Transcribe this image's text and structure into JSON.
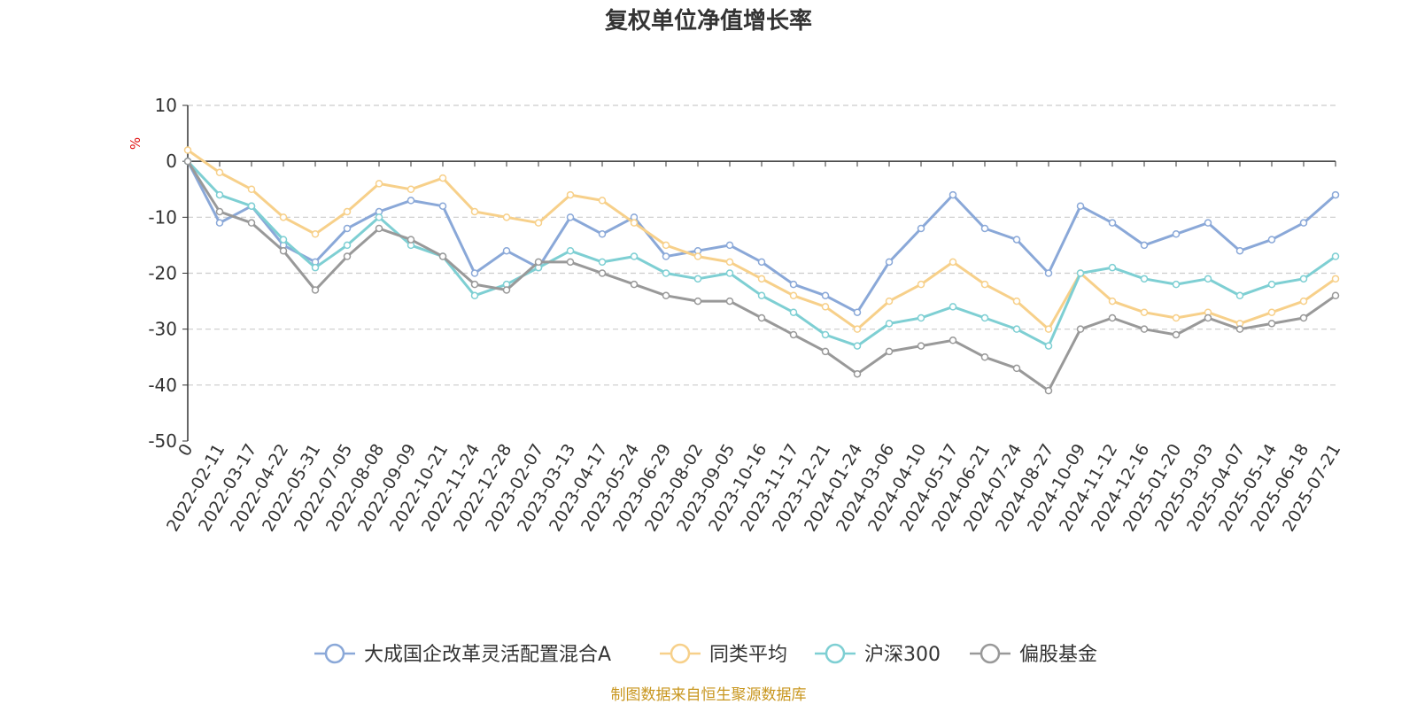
{
  "chart_data": {
    "type": "line",
    "title": "复权单位净值增长率",
    "ylabel": "%",
    "xlabel": "",
    "ylim": [
      -50,
      10
    ],
    "yticks": [
      10,
      0,
      -10,
      -20,
      -30,
      -40,
      -50
    ],
    "grid": true,
    "legend_position": "bottom",
    "x": [
      "0",
      "2022-02-11",
      "2022-03-17",
      "2022-04-22",
      "2022-05-31",
      "2022-07-05",
      "2022-08-08",
      "2022-09-09",
      "2022-10-21",
      "2022-11-24",
      "2022-12-28",
      "2023-02-07",
      "2023-03-13",
      "2023-04-17",
      "2023-05-24",
      "2023-06-29",
      "2023-08-02",
      "2023-09-05",
      "2023-10-16",
      "2023-11-17",
      "2023-12-21",
      "2024-01-24",
      "2024-03-06",
      "2024-04-10",
      "2024-05-17",
      "2024-06-21",
      "2024-07-24",
      "2024-08-27",
      "2024-10-09",
      "2024-11-12",
      "2024-12-16",
      "2025-01-20",
      "2025-03-03",
      "2025-04-07",
      "2025-05-14",
      "2025-06-18",
      "2025-07-21"
    ],
    "series": [
      {
        "name": "大成国企改革灵活配置混合A",
        "color": "#8aa8d8",
        "values": [
          0,
          -11,
          -8,
          -15,
          -18,
          -12,
          -9,
          -7,
          -8,
          -20,
          -16,
          -19,
          -10,
          -13,
          -10,
          -17,
          -16,
          -15,
          -18,
          -22,
          -24,
          -27,
          -18,
          -12,
          -6,
          -12,
          -14,
          -20,
          -8,
          -11,
          -15,
          -13,
          -11,
          -16,
          -14,
          -11,
          -6
        ]
      },
      {
        "name": "同类平均",
        "color": "#f7d08a",
        "values": [
          2,
          -2,
          -5,
          -10,
          -13,
          -9,
          -4,
          -5,
          -3,
          -9,
          -10,
          -11,
          -6,
          -7,
          -11,
          -15,
          -17,
          -18,
          -21,
          -24,
          -26,
          -30,
          -25,
          -22,
          -18,
          -22,
          -25,
          -30,
          -20,
          -25,
          -27,
          -28,
          -27,
          -29,
          -27,
          -25,
          -21
        ]
      },
      {
        "name": "沪深300",
        "color": "#7ecfd3",
        "values": [
          0,
          -6,
          -8,
          -14,
          -19,
          -15,
          -10,
          -15,
          -17,
          -24,
          -22,
          -19,
          -16,
          -18,
          -17,
          -20,
          -21,
          -20,
          -24,
          -27,
          -31,
          -33,
          -29,
          -28,
          -26,
          -28,
          -30,
          -33,
          -20,
          -19,
          -21,
          -22,
          -21,
          -24,
          -22,
          -21,
          -17
        ]
      },
      {
        "name": "偏股基金",
        "color": "#999999",
        "values": [
          0,
          -9,
          -11,
          -16,
          -23,
          -17,
          -12,
          -14,
          -17,
          -22,
          -23,
          -18,
          -18,
          -20,
          -22,
          -24,
          -25,
          -25,
          -28,
          -31,
          -34,
          -38,
          -34,
          -33,
          -32,
          -35,
          -37,
          -41,
          -30,
          -28,
          -30,
          -31,
          -28,
          -30,
          -29,
          -28,
          -24
        ]
      }
    ]
  },
  "footer": {
    "source_text": "制图数据来自恒生聚源数据库"
  }
}
